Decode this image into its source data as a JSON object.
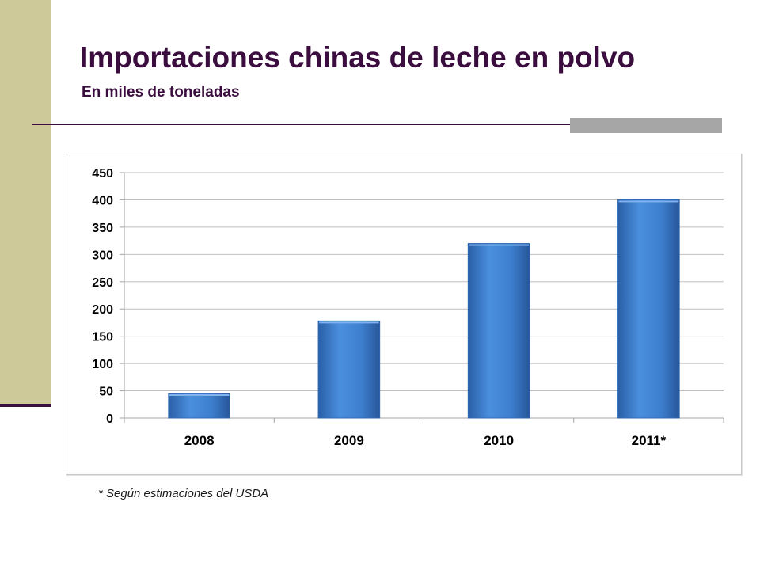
{
  "slide": {
    "title": "Importaciones chinas de leche en polvo",
    "subtitle": "En miles de toneladas",
    "footnote": "* Según estimaciones del USDA"
  },
  "colors": {
    "title": "#3b0d3f",
    "side_bar": "#cdc999",
    "rule": "#3c0f3c",
    "rule_accent": "#a6a6a6",
    "bar": "#3d7fce",
    "grid": "#bfbfbf"
  },
  "chart_data": {
    "type": "bar",
    "categories": [
      "2008",
      "2009",
      "2010",
      "2011*"
    ],
    "values": [
      45,
      178,
      320,
      400
    ],
    "ylim": [
      0,
      450
    ],
    "yticks": [
      0,
      50,
      100,
      150,
      200,
      250,
      300,
      350,
      400,
      450
    ],
    "title": "",
    "xlabel": "",
    "ylabel": "",
    "grid": true,
    "legend": "none"
  }
}
